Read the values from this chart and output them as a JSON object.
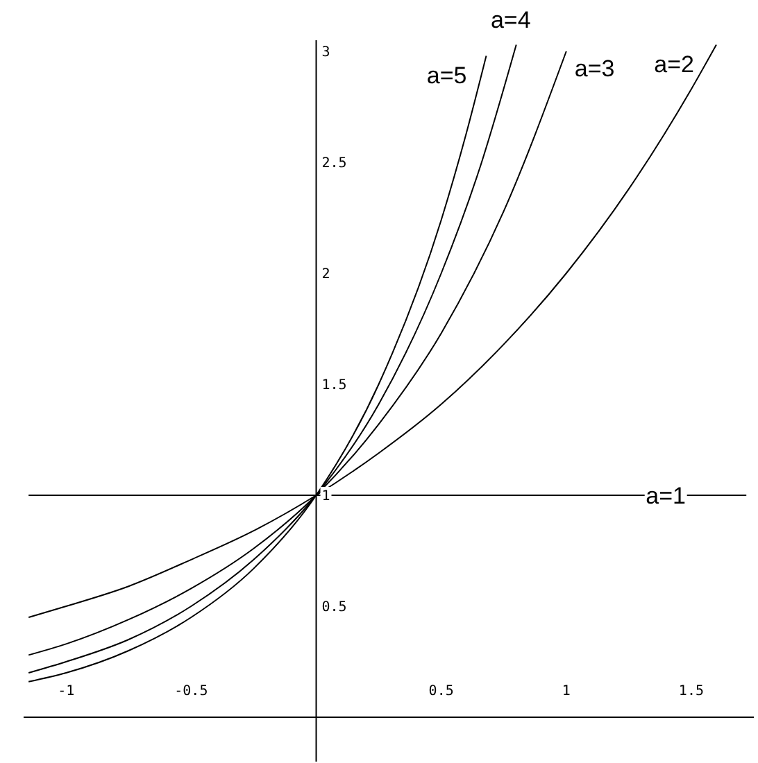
{
  "chart_data": {
    "type": "line",
    "xlim": [
      -1.17,
      1.75
    ],
    "ylim": [
      -0.2,
      3.05
    ],
    "xticks": [
      {
        "value": -1,
        "label": "-1"
      },
      {
        "value": -0.5,
        "label": "-0.5"
      },
      {
        "value": 0.5,
        "label": "0.5"
      },
      {
        "value": 1,
        "label": "1"
      },
      {
        "value": 1.5,
        "label": "1.5"
      }
    ],
    "yticks": [
      0.5,
      1,
      1.5,
      2,
      2.5,
      3
    ],
    "grid": false,
    "marker": "none",
    "line_style": "solid",
    "series": [
      {
        "name": "a=1",
        "color": "#000000",
        "x": [
          -1.15,
          1.72
        ],
        "values": [
          1,
          1
        ]
      },
      {
        "name": "a=2",
        "color": "#000000",
        "x": [
          -1.15,
          -1,
          -0.75,
          -0.5,
          -0.25,
          0,
          0.25,
          0.5,
          0.75,
          1,
          1.25,
          1.5,
          1.6
        ],
        "values": [
          0.45,
          0.5,
          0.59,
          0.71,
          0.84,
          1,
          1.19,
          1.41,
          1.68,
          2,
          2.38,
          2.83,
          3.03
        ]
      },
      {
        "name": "a=3",
        "color": "#000000",
        "x": [
          -1.15,
          -1,
          -0.75,
          -0.5,
          -0.25,
          0,
          0.25,
          0.5,
          0.75,
          1
        ],
        "values": [
          0.28,
          0.33,
          0.44,
          0.58,
          0.76,
          1,
          1.32,
          1.73,
          2.28,
          3
        ]
      },
      {
        "name": "a=4",
        "color": "#000000",
        "x": [
          -1.15,
          -1,
          -0.75,
          -0.5,
          -0.25,
          0,
          0.25,
          0.5,
          0.65,
          0.8
        ],
        "values": [
          0.2,
          0.25,
          0.35,
          0.5,
          0.71,
          1,
          1.41,
          2,
          2.46,
          3.03
        ]
      },
      {
        "name": "a=5",
        "color": "#000000",
        "x": [
          -1.15,
          -1,
          -0.75,
          -0.5,
          -0.25,
          0,
          0.25,
          0.5,
          0.6,
          0.68
        ],
        "values": [
          0.16,
          0.2,
          0.3,
          0.45,
          0.67,
          1,
          1.5,
          2.24,
          2.63,
          2.98
        ]
      }
    ]
  }
}
